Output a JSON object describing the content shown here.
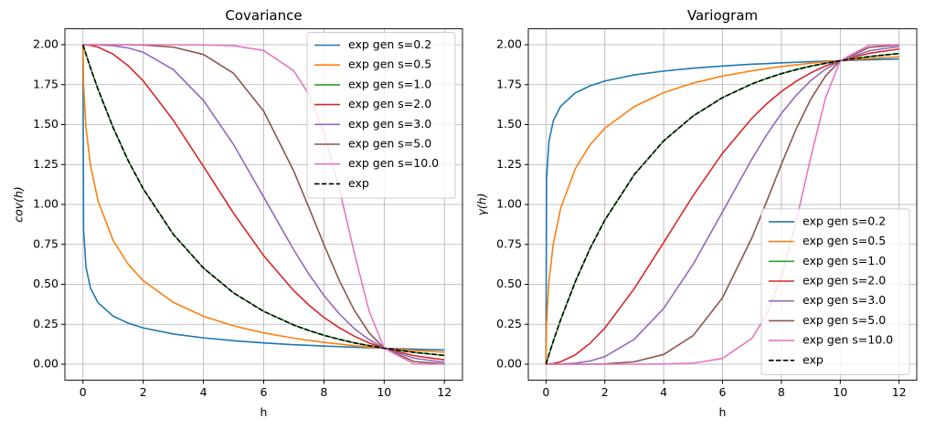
{
  "chart_data": [
    {
      "type": "line",
      "title": "Covariance",
      "xlabel": "h",
      "ylabel": "cov(h)",
      "legend": "upper right",
      "grid": true,
      "x": [
        0,
        0.02,
        0.1,
        0.25,
        0.5,
        1,
        1.5,
        2,
        3,
        4,
        5,
        6,
        7,
        7.5,
        8,
        8.5,
        9,
        9.5,
        10,
        11,
        12
      ],
      "xlim": [
        -0.6,
        12.6
      ],
      "xticks": [
        0,
        2,
        4,
        6,
        8,
        10,
        12
      ],
      "ylim": [
        -0.1,
        2.1
      ],
      "yticks": [
        {
          "value": 0,
          "label": "0.00"
        },
        {
          "value": 0.25,
          "label": "0.25"
        },
        {
          "value": 0.5,
          "label": "0.50"
        },
        {
          "value": 0.75,
          "label": "0.75"
        },
        {
          "value": 1,
          "label": "1.00"
        },
        {
          "value": 1.25,
          "label": "1.25"
        },
        {
          "value": 1.5,
          "label": "1.50"
        },
        {
          "value": 1.75,
          "label": "1.75"
        },
        {
          "value": 2,
          "label": "2.00"
        }
      ],
      "series": [
        {
          "name": "exp gen s=0.2",
          "color": "#1f77b4",
          "linestyle": "-",
          "values": [
            2,
            0.842,
            0.606,
            0.476,
            0.385,
            0.301,
            0.257,
            0.227,
            0.189,
            0.165,
            0.147,
            0.133,
            0.122,
            0.118,
            0.113,
            0.11,
            0.106,
            0.103,
            0.1,
            0.094,
            0.089
          ]
        },
        {
          "name": "exp gen s=0.5",
          "color": "#ff7f0e",
          "linestyle": "-",
          "values": [
            2,
            1.749,
            1.482,
            1.245,
            1.023,
            0.775,
            0.626,
            0.523,
            0.387,
            0.3,
            0.24,
            0.196,
            0.163,
            0.149,
            0.137,
            0.126,
            0.116,
            0.107,
            0.1,
            0.086,
            0.075
          ]
        },
        {
          "name": "exp gen s=1.0",
          "color": "#2ca02c",
          "linestyle": "-",
          "values": [
            2,
            1.988,
            1.941,
            1.855,
            1.721,
            1.482,
            1.275,
            1.098,
            0.813,
            0.602,
            0.446,
            0.331,
            0.245,
            0.211,
            0.181,
            0.156,
            0.134,
            0.116,
            0.1,
            0.074,
            0.055
          ]
        },
        {
          "name": "exp gen s=2.0",
          "color": "#d62728",
          "linestyle": "-",
          "values": [
            2,
            2.0,
            1.999,
            1.996,
            1.985,
            1.941,
            1.869,
            1.774,
            1.527,
            1.238,
            0.945,
            0.679,
            0.46,
            0.37,
            0.293,
            0.229,
            0.176,
            0.133,
            0.1,
            0.053,
            0.027
          ]
        },
        {
          "name": "exp gen s=3.0",
          "color": "#9467bd",
          "linestyle": "-",
          "values": [
            2,
            2.0,
            2.0,
            2.0,
            1.999,
            1.994,
            1.98,
            1.953,
            1.844,
            1.651,
            1.375,
            1.046,
            0.715,
            0.564,
            0.43,
            0.317,
            0.224,
            0.153,
            0.1,
            0.037,
            0.011
          ]
        },
        {
          "name": "exp gen s=5.0",
          "color": "#8c564b",
          "linestyle": "-",
          "values": [
            2,
            2.0,
            2.0,
            2.0,
            2.0,
            2.0,
            2.0,
            1.998,
            1.985,
            1.939,
            1.821,
            1.584,
            1.208,
            0.981,
            0.748,
            0.528,
            0.34,
            0.196,
            0.1,
            0.016,
            0.001
          ]
        },
        {
          "name": "exp gen s=10.0",
          "color": "#e377c2",
          "linestyle": "-",
          "values": [
            2,
            2.0,
            2.0,
            2.0,
            2.0,
            2.0,
            2.0,
            2.0,
            2.0,
            1.999,
            1.994,
            1.964,
            1.837,
            1.689,
            1.449,
            1.108,
            0.703,
            0.332,
            0.1,
            0.001,
            0.0
          ]
        },
        {
          "name": "exp",
          "color": "#000000",
          "linestyle": "--",
          "values": [
            2,
            1.988,
            1.941,
            1.855,
            1.721,
            1.482,
            1.275,
            1.098,
            0.813,
            0.602,
            0.446,
            0.331,
            0.245,
            0.211,
            0.181,
            0.156,
            0.134,
            0.116,
            0.1,
            0.074,
            0.055
          ]
        }
      ]
    },
    {
      "type": "line",
      "title": "Variogram",
      "xlabel": "h",
      "ylabel": "γ(h)",
      "legend": "lower right",
      "grid": true,
      "x": [
        0,
        0.02,
        0.1,
        0.25,
        0.5,
        1,
        1.5,
        2,
        3,
        4,
        5,
        6,
        7,
        7.5,
        8,
        8.5,
        9,
        9.5,
        10,
        11,
        12
      ],
      "xlim": [
        -0.6,
        12.6
      ],
      "xticks": [
        0,
        2,
        4,
        6,
        8,
        10,
        12
      ],
      "ylim": [
        -0.1,
        2.1
      ],
      "yticks": [
        {
          "value": 0,
          "label": "0.00"
        },
        {
          "value": 0.25,
          "label": "0.25"
        },
        {
          "value": 0.5,
          "label": "0.50"
        },
        {
          "value": 0.75,
          "label": "0.75"
        },
        {
          "value": 1,
          "label": "1.00"
        },
        {
          "value": 1.25,
          "label": "1.25"
        },
        {
          "value": 1.5,
          "label": "1.50"
        },
        {
          "value": 1.75,
          "label": "1.75"
        },
        {
          "value": 2,
          "label": "2.00"
        }
      ],
      "series": [
        {
          "name": "exp gen s=0.2",
          "color": "#1f77b4",
          "linestyle": "-",
          "values": [
            0,
            1.158,
            1.394,
            1.524,
            1.615,
            1.699,
            1.743,
            1.773,
            1.811,
            1.835,
            1.853,
            1.867,
            1.878,
            1.882,
            1.887,
            1.89,
            1.894,
            1.897,
            1.9,
            1.906,
            1.911
          ]
        },
        {
          "name": "exp gen s=0.5",
          "color": "#ff7f0e",
          "linestyle": "-",
          "values": [
            0,
            0.251,
            0.518,
            0.755,
            0.977,
            1.225,
            1.374,
            1.477,
            1.613,
            1.7,
            1.76,
            1.804,
            1.837,
            1.851,
            1.863,
            1.874,
            1.884,
            1.893,
            1.9,
            1.914,
            1.925
          ]
        },
        {
          "name": "exp gen s=1.0",
          "color": "#2ca02c",
          "linestyle": "-",
          "values": [
            0,
            0.012,
            0.059,
            0.145,
            0.279,
            0.518,
            0.725,
            0.902,
            1.187,
            1.398,
            1.554,
            1.669,
            1.755,
            1.789,
            1.819,
            1.844,
            1.866,
            1.884,
            1.9,
            1.926,
            1.945
          ]
        },
        {
          "name": "exp gen s=2.0",
          "color": "#d62728",
          "linestyle": "-",
          "values": [
            0,
            0.0,
            0.001,
            0.004,
            0.015,
            0.059,
            0.131,
            0.226,
            0.473,
            0.762,
            1.055,
            1.321,
            1.54,
            1.63,
            1.707,
            1.771,
            1.824,
            1.867,
            1.9,
            1.947,
            1.973
          ]
        },
        {
          "name": "exp gen s=3.0",
          "color": "#9467bd",
          "linestyle": "-",
          "values": [
            0,
            0.0,
            0.0,
            0.0,
            0.001,
            0.006,
            0.02,
            0.047,
            0.156,
            0.349,
            0.625,
            0.954,
            1.285,
            1.436,
            1.57,
            1.683,
            1.776,
            1.847,
            1.9,
            1.963,
            1.989
          ]
        },
        {
          "name": "exp gen s=5.0",
          "color": "#8c564b",
          "linestyle": "-",
          "values": [
            0,
            0.0,
            0.0,
            0.0,
            0.0,
            0.0,
            0.0,
            0.002,
            0.015,
            0.061,
            0.179,
            0.416,
            0.792,
            1.019,
            1.252,
            1.472,
            1.66,
            1.804,
            1.9,
            1.984,
            1.999
          ]
        },
        {
          "name": "exp gen s=10.0",
          "color": "#e377c2",
          "linestyle": "-",
          "values": [
            0,
            0.0,
            0.0,
            0.0,
            0.0,
            0.0,
            0.0,
            0.0,
            0.0,
            0.001,
            0.006,
            0.036,
            0.163,
            0.311,
            0.551,
            0.892,
            1.297,
            1.668,
            1.9,
            1.999,
            2.0
          ]
        },
        {
          "name": "exp",
          "color": "#000000",
          "linestyle": "--",
          "values": [
            0,
            0.012,
            0.059,
            0.145,
            0.279,
            0.518,
            0.725,
            0.902,
            1.187,
            1.398,
            1.554,
            1.669,
            1.755,
            1.789,
            1.819,
            1.844,
            1.866,
            1.884,
            1.9,
            1.926,
            1.945
          ]
        }
      ]
    }
  ]
}
